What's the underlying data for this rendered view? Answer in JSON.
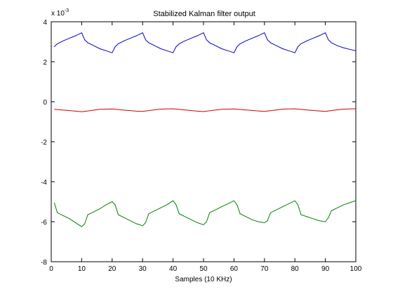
{
  "chart_data": {
    "type": "line",
    "title": "Stabilized Kalman filter output",
    "xlabel": "Samples (10 KHz)",
    "ylabel": "",
    "y_scale_base": "x 10",
    "y_scale_exponent": "-3",
    "xlim": [
      0,
      100
    ],
    "ylim": [
      -8,
      4
    ],
    "xticks": [
      0,
      10,
      20,
      30,
      40,
      50,
      60,
      70,
      80,
      90,
      100
    ],
    "yticks": [
      -8,
      -6,
      -4,
      -2,
      0,
      2,
      4
    ],
    "grid": false,
    "legend": "none",
    "series": [
      {
        "name": "blue",
        "color": "#0000cc",
        "x": [
          1,
          2,
          4,
          6,
          8,
          10,
          11,
          12,
          14,
          16,
          18,
          20,
          21,
          22,
          24,
          26,
          28,
          30,
          31,
          32,
          34,
          36,
          38,
          40,
          41,
          42,
          44,
          46,
          48,
          50,
          51,
          52,
          54,
          56,
          58,
          60,
          61,
          62,
          64,
          66,
          68,
          70,
          71,
          72,
          74,
          76,
          78,
          80,
          81,
          82,
          84,
          86,
          88,
          90,
          91,
          92,
          94,
          96,
          98,
          100
        ],
        "values": [
          2.75,
          2.9,
          3.05,
          3.18,
          3.3,
          3.45,
          3.1,
          2.95,
          2.8,
          2.65,
          2.55,
          2.45,
          2.75,
          2.9,
          3.05,
          3.18,
          3.3,
          3.45,
          3.1,
          2.95,
          2.8,
          2.65,
          2.55,
          2.45,
          2.75,
          2.9,
          3.05,
          3.18,
          3.3,
          3.45,
          3.1,
          2.95,
          2.8,
          2.65,
          2.55,
          2.45,
          2.75,
          2.9,
          3.05,
          3.18,
          3.3,
          3.45,
          3.1,
          2.95,
          2.8,
          2.65,
          2.55,
          2.45,
          2.75,
          2.9,
          3.05,
          3.18,
          3.3,
          3.45,
          3.1,
          2.95,
          2.8,
          2.7,
          2.62,
          2.55
        ]
      },
      {
        "name": "red",
        "color": "#cc0000",
        "x": [
          1,
          5,
          8,
          10,
          13,
          16,
          20,
          24,
          28,
          30,
          33,
          36,
          40,
          44,
          48,
          50,
          53,
          56,
          60,
          64,
          68,
          70,
          73,
          76,
          80,
          84,
          88,
          90,
          93,
          96,
          100
        ],
        "values": [
          -0.38,
          -0.43,
          -0.47,
          -0.5,
          -0.44,
          -0.38,
          -0.36,
          -0.42,
          -0.47,
          -0.48,
          -0.42,
          -0.37,
          -0.35,
          -0.41,
          -0.47,
          -0.49,
          -0.43,
          -0.38,
          -0.36,
          -0.41,
          -0.46,
          -0.48,
          -0.43,
          -0.37,
          -0.35,
          -0.41,
          -0.46,
          -0.48,
          -0.42,
          -0.37,
          -0.35
        ]
      },
      {
        "name": "green",
        "color": "#008000",
        "x": [
          1,
          2,
          4,
          6,
          8,
          10,
          11,
          12,
          14,
          16,
          18,
          20,
          21,
          22,
          24,
          26,
          28,
          30,
          31,
          32,
          34,
          36,
          38,
          40,
          41,
          42,
          44,
          46,
          48,
          50,
          51,
          52,
          54,
          56,
          58,
          60,
          61,
          62,
          64,
          66,
          68,
          70,
          71,
          72,
          74,
          76,
          78,
          80,
          81,
          82,
          84,
          86,
          88,
          90,
          91,
          92,
          94,
          96,
          98,
          100
        ],
        "values": [
          -5.05,
          -5.55,
          -5.7,
          -5.85,
          -6.05,
          -6.25,
          -6.1,
          -5.65,
          -5.5,
          -5.35,
          -5.15,
          -5.0,
          -5.15,
          -5.65,
          -5.8,
          -5.95,
          -6.1,
          -6.2,
          -6.05,
          -5.6,
          -5.45,
          -5.3,
          -5.15,
          -4.95,
          -5.15,
          -5.6,
          -5.75,
          -5.9,
          -6.05,
          -6.15,
          -6.0,
          -5.55,
          -5.4,
          -5.25,
          -5.1,
          -4.95,
          -5.15,
          -5.6,
          -5.75,
          -5.9,
          -6.0,
          -6.05,
          -5.95,
          -5.55,
          -5.4,
          -5.25,
          -5.1,
          -4.95,
          -5.15,
          -5.65,
          -5.75,
          -5.85,
          -5.95,
          -6.0,
          -5.8,
          -5.45,
          -5.3,
          -5.15,
          -5.05,
          -4.95
        ]
      }
    ]
  }
}
